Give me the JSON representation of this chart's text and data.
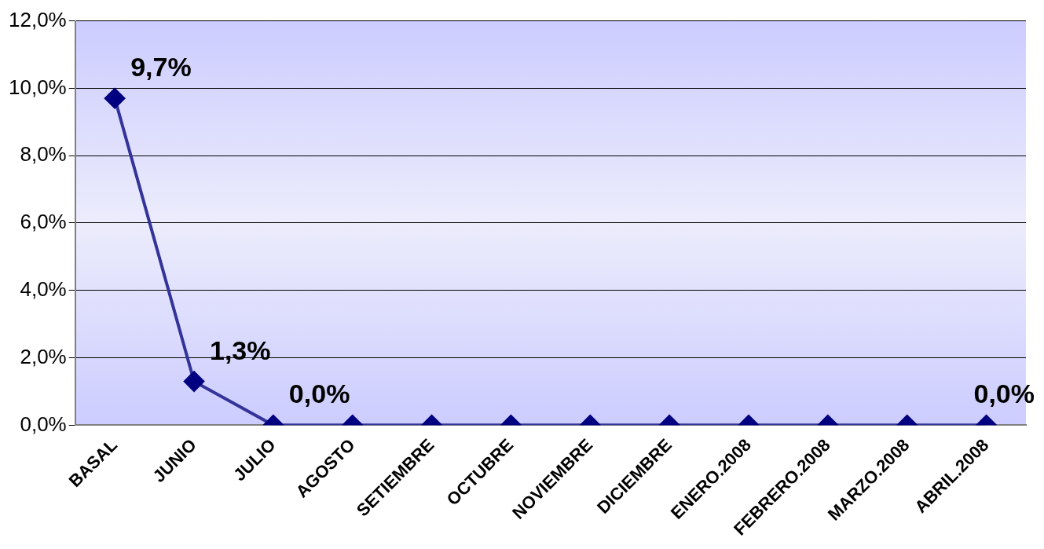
{
  "chart_data": {
    "type": "line",
    "categories": [
      "BASAL",
      "JUNIO",
      "JULIO",
      "AGOSTO",
      "SETIEMBRE",
      "OCTUBRE",
      "NOVIEMBRE",
      "DICIEMBRE",
      "ENERO.2008",
      "FEBRERO.2008",
      "MARZO.2008",
      "ABRIL.2008"
    ],
    "series": [
      {
        "color": "#333399",
        "values": [
          9.7,
          1.3,
          0,
          0,
          0,
          0,
          0,
          0,
          0,
          0,
          0,
          0
        ],
        "value_labels": [
          "9,7%",
          "1,3%",
          "0,0%",
          null,
          null,
          null,
          null,
          null,
          null,
          null,
          null,
          "0,0%"
        ]
      }
    ],
    "ylim": [
      0,
      12
    ],
    "yticks": [
      {
        "value": 0,
        "label": "0,0%"
      },
      {
        "value": 2,
        "label": "2,0%"
      },
      {
        "value": 4,
        "label": "4,0%"
      },
      {
        "value": 6,
        "label": "6,0%"
      },
      {
        "value": 8,
        "label": "8,0%"
      },
      {
        "value": 10,
        "label": "10,0%"
      },
      {
        "value": 12,
        "label": "12,0%"
      }
    ],
    "grid": "y",
    "legend": false,
    "marker": "diamond",
    "line_style": "solid"
  }
}
